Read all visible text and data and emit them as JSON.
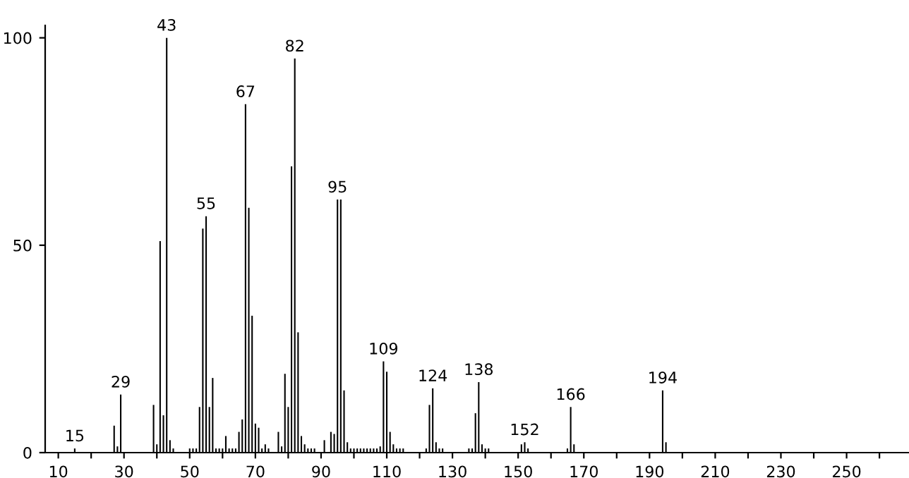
{
  "chart_data": {
    "type": "bar",
    "color": "#000000",
    "x": [
      15,
      27,
      28,
      29,
      39,
      40,
      41,
      42,
      43,
      44,
      45,
      50,
      51,
      52,
      53,
      54,
      55,
      56,
      57,
      58,
      59,
      60,
      61,
      62,
      63,
      64,
      65,
      66,
      67,
      68,
      69,
      70,
      71,
      72,
      73,
      74,
      77,
      78,
      79,
      80,
      81,
      82,
      83,
      84,
      85,
      86,
      87,
      88,
      91,
      93,
      94,
      95,
      96,
      97,
      98,
      99,
      100,
      101,
      102,
      103,
      104,
      105,
      106,
      107,
      108,
      109,
      110,
      111,
      112,
      113,
      114,
      115,
      122,
      123,
      124,
      125,
      126,
      127,
      135,
      136,
      137,
      138,
      139,
      140,
      141,
      151,
      152,
      153,
      165,
      166,
      167,
      194,
      195
    ],
    "values": [
      1,
      6.5,
      1.5,
      14,
      11.5,
      2,
      51,
      9,
      100,
      3,
      1,
      1,
      1,
      1,
      11,
      54,
      57,
      11,
      18,
      1,
      1,
      1,
      4,
      1,
      1,
      1,
      5,
      8,
      84,
      59,
      33,
      7,
      6,
      1,
      2,
      1,
      5,
      1.5,
      19,
      11,
      69,
      95,
      29,
      4,
      2,
      1,
      1,
      1,
      3,
      5,
      4.5,
      61,
      61,
      15,
      2.5,
      1,
      1,
      1,
      1,
      1,
      1,
      1,
      1,
      1,
      1.5,
      22,
      19.5,
      5,
      2,
      1,
      1,
      1,
      1,
      11.5,
      15.5,
      2.5,
      1,
      1,
      1,
      1,
      9.5,
      17,
      2,
      1,
      1,
      2,
      2.5,
      1,
      1,
      11,
      2,
      15,
      2.5
    ],
    "annotations": [
      {
        "text": "15",
        "x": 15,
        "y": 1
      },
      {
        "text": "29",
        "x": 29,
        "y": 14
      },
      {
        "text": "43",
        "x": 43,
        "y": 100
      },
      {
        "text": "55",
        "x": 55,
        "y": 57
      },
      {
        "text": "67",
        "x": 67,
        "y": 84
      },
      {
        "text": "82",
        "x": 82,
        "y": 95
      },
      {
        "text": "95",
        "x": 95,
        "y": 61
      },
      {
        "text": "109",
        "x": 109,
        "y": 22
      },
      {
        "text": "124",
        "x": 124,
        "y": 15.5
      },
      {
        "text": "138",
        "x": 138,
        "y": 17
      },
      {
        "text": "152",
        "x": 152,
        "y": 2.5
      },
      {
        "text": "166",
        "x": 166,
        "y": 11
      },
      {
        "text": "194",
        "x": 194,
        "y": 15
      }
    ],
    "xlim": [
      6,
      269
    ],
    "xticks": [
      10,
      {
        "value": 20,
        "label": null
      },
      30,
      {
        "value": 40,
        "label": null
      },
      50,
      {
        "value": 60,
        "label": null
      },
      70,
      {
        "value": 80,
        "label": null
      },
      90,
      {
        "value": 100,
        "label": null
      },
      110,
      {
        "value": 120,
        "label": null
      },
      130,
      {
        "value": 140,
        "label": null
      },
      150,
      {
        "value": 160,
        "label": null
      },
      170,
      {
        "value": 180,
        "label": null
      },
      190,
      {
        "value": 200,
        "label": null
      },
      210,
      {
        "value": 220,
        "label": null
      },
      230,
      {
        "value": 240,
        "label": null
      },
      250,
      {
        "value": 260,
        "label": null
      }
    ],
    "ylim": [
      0,
      103
    ],
    "yticks": [
      0,
      50,
      100
    ],
    "grid": false
  }
}
